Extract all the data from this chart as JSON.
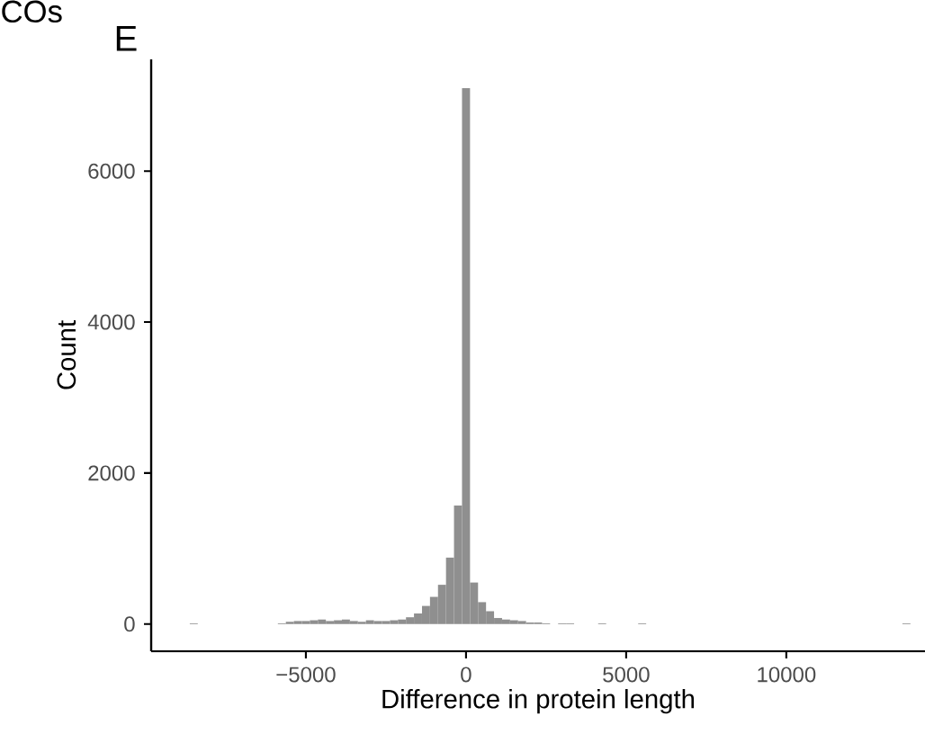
{
  "chart_data": {
    "type": "histogram",
    "title": "E",
    "xlabel": "Difference in protein length",
    "ylabel": "Count",
    "annotations": [
      "COs"
    ],
    "bins": [
      -8875,
      -8625,
      -8375,
      -8125,
      -7875,
      -7625,
      -7375,
      -7125,
      -6875,
      -6625,
      -6375,
      -6125,
      -5875,
      -5625,
      -5375,
      -5125,
      -4875,
      -4625,
      -4375,
      -4125,
      -3875,
      -3625,
      -3375,
      -3125,
      -2875,
      -2625,
      -2375,
      -2125,
      -1875,
      -1625,
      -1375,
      -1125,
      -875,
      -625,
      -375,
      -125,
      125,
      375,
      625,
      875,
      1125,
      1375,
      1625,
      1875,
      2125,
      2375,
      2625,
      2875,
      3125,
      3375,
      3625,
      3875,
      4125,
      4375,
      4625,
      4875,
      5125,
      5375,
      5625,
      5875,
      6125,
      6375,
      6625,
      6875,
      7125,
      7375,
      7625,
      7875,
      8125,
      8375,
      8625,
      8875,
      9125,
      9375,
      9625,
      9875,
      10125,
      10375,
      10625,
      10875,
      11125,
      11375,
      11625,
      11875,
      12125,
      12375,
      12625,
      12875,
      13125,
      13375,
      13625,
      13875
    ],
    "values": [
      0,
      10,
      0,
      0,
      0,
      0,
      0,
      0,
      0,
      0,
      0,
      0,
      10,
      30,
      40,
      40,
      50,
      60,
      40,
      50,
      60,
      40,
      30,
      50,
      40,
      40,
      50,
      60,
      90,
      140,
      240,
      360,
      520,
      880,
      1570,
      7100,
      550,
      290,
      170,
      80,
      60,
      50,
      40,
      20,
      20,
      10,
      0,
      10,
      10,
      0,
      0,
      0,
      10,
      0,
      0,
      0,
      0,
      10,
      0,
      0,
      0,
      0,
      0,
      0,
      0,
      0,
      0,
      0,
      0,
      0,
      0,
      0,
      0,
      0,
      0,
      0,
      0,
      0,
      0,
      0,
      0,
      0,
      0,
      0,
      0,
      0,
      0,
      0,
      0,
      0,
      10
    ],
    "color": "#8f8f8f",
    "xlim": [
      -9830,
      14330
    ],
    "ylim": [
      -360,
      7480
    ],
    "xticks": [
      {
        "value": -5000,
        "label": "−5000"
      },
      0,
      5000,
      10000
    ],
    "yticks": [
      0,
      2000,
      4000,
      6000
    ],
    "grid": false
  }
}
